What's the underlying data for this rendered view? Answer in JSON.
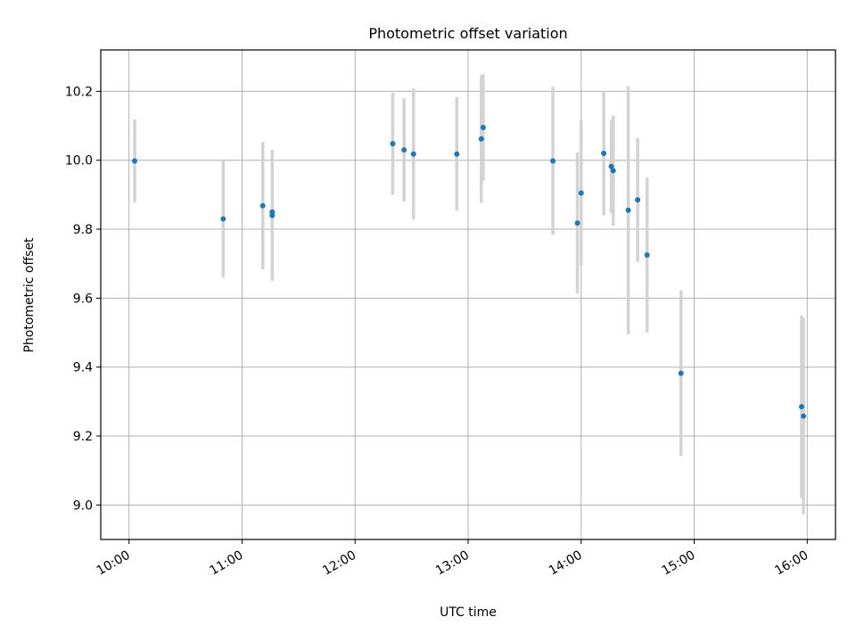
{
  "chart_data": {
    "type": "scatter",
    "title": "Photometric offset variation",
    "xlabel": "UTC time",
    "ylabel": "Photometric offset",
    "xlim": [
      "09:45",
      "16:15"
    ],
    "ylim": [
      8.9,
      10.32
    ],
    "grid": true,
    "x_ticks": [
      "10:00",
      "11:00",
      "12:00",
      "13:00",
      "14:00",
      "15:00",
      "16:00"
    ],
    "y_ticks": [
      "9.0",
      "9.2",
      "9.4",
      "9.6",
      "9.8",
      "10.0",
      "10.2"
    ],
    "colors": {
      "points": "#1f77b4",
      "error_bars": "#d3d3d3"
    },
    "points": [
      {
        "x": "10:03",
        "y": 9.998,
        "err": 0.12
      },
      {
        "x": "10:50",
        "y": 9.83,
        "err": 0.17
      },
      {
        "x": "11:11",
        "y": 9.868,
        "err": 0.185
      },
      {
        "x": "11:16",
        "y": 9.85,
        "err": 0.18
      },
      {
        "x": "11:16",
        "y": 9.84,
        "err": 0.19
      },
      {
        "x": "12:20",
        "y": 10.048,
        "err": 0.148
      },
      {
        "x": "12:26",
        "y": 10.03,
        "err": 0.15
      },
      {
        "x": "12:31",
        "y": 10.018,
        "err": 0.19
      },
      {
        "x": "12:54",
        "y": 10.018,
        "err": 0.165
      },
      {
        "x": "13:07",
        "y": 10.062,
        "err": 0.185
      },
      {
        "x": "13:08",
        "y": 10.095,
        "err": 0.155
      },
      {
        "x": "13:45",
        "y": 9.998,
        "err": 0.215
      },
      {
        "x": "13:58",
        "y": 9.818,
        "err": 0.205
      },
      {
        "x": "14:00",
        "y": 9.905,
        "err": 0.21
      },
      {
        "x": "14:12",
        "y": 10.02,
        "err": 0.18
      },
      {
        "x": "14:16",
        "y": 9.982,
        "err": 0.135
      },
      {
        "x": "14:17",
        "y": 9.97,
        "err": 0.16
      },
      {
        "x": "14:25",
        "y": 9.855,
        "err": 0.36
      },
      {
        "x": "14:30",
        "y": 9.885,
        "err": 0.18
      },
      {
        "x": "14:35",
        "y": 9.725,
        "err": 0.225
      },
      {
        "x": "14:53",
        "y": 9.382,
        "err": 0.24
      },
      {
        "x": "15:57",
        "y": 9.285,
        "err": 0.265
      },
      {
        "x": "15:58",
        "y": 9.258,
        "err": 0.285
      }
    ]
  }
}
